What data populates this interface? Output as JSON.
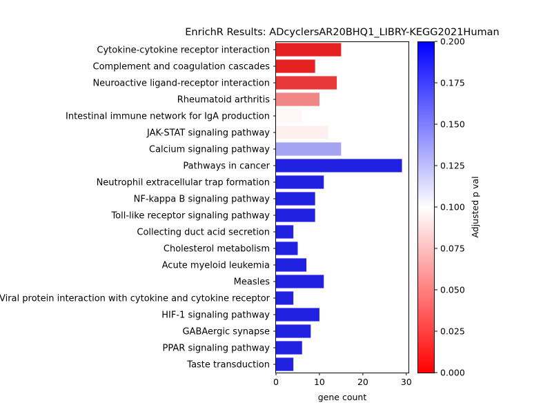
{
  "chart_data": {
    "type": "bar",
    "orientation": "horizontal",
    "title": "EnrichR Results: ADcyclersAR20BHQ1_LIBRY-KEGG2021Human",
    "xlabel": "gene count",
    "ylabel": "",
    "xlim": [
      0,
      30.5
    ],
    "xticks": [
      0,
      10,
      20,
      30
    ],
    "grid": false,
    "categories": [
      "Cytokine-cytokine receptor interaction",
      "Complement and coagulation cascades",
      "Neuroactive ligand-receptor interaction",
      "Rheumatoid arthritis",
      "Intestinal immune network for IgA production",
      "JAK-STAT signaling pathway",
      "Calcium signaling pathway",
      "Pathways in cancer",
      "Neutrophil extracellular trap formation",
      "NF-kappa B signaling pathway",
      "Toll-like receptor signaling pathway",
      "Collecting duct acid secretion",
      "Cholesterol metabolism",
      "Acute myeloid leukemia",
      "Measles",
      "Viral protein interaction with cytokine and cytokine receptor",
      "HIF-1 signaling pathway",
      "GABAergic synapse",
      "PPAR signaling pathway",
      "Taste transduction"
    ],
    "values": [
      15,
      9,
      14,
      10,
      6,
      12,
      15,
      29,
      11,
      9,
      9,
      4,
      5,
      7,
      11,
      4,
      10,
      8,
      6,
      4
    ],
    "bar_colors": [
      "#e52121",
      "#e52121",
      "#e83737",
      "#f08585",
      "#fff7f7",
      "#fff0f0",
      "#a4a4f2",
      "#2121e2",
      "#2121e2",
      "#2121e2",
      "#2121e2",
      "#2121e2",
      "#2121e2",
      "#2121e2",
      "#2121e2",
      "#2121e2",
      "#2121e2",
      "#2121e2",
      "#2121e2",
      "#2121e2"
    ],
    "colorbar": {
      "label": "Adjusted p val",
      "range": [
        0,
        0.2
      ],
      "ticks": [
        "0.000",
        "0.025",
        "0.050",
        "0.075",
        "0.100",
        "0.125",
        "0.150",
        "0.175",
        "0.200"
      ],
      "colors": [
        "#ff0000",
        "#ffffff",
        "#0000ff"
      ]
    }
  }
}
